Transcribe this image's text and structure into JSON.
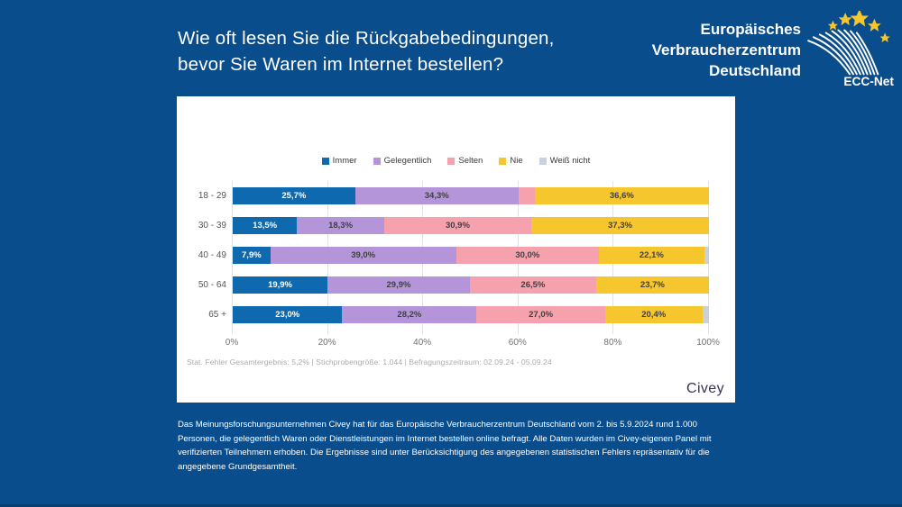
{
  "page": {
    "title_line1": "Wie oft lesen Sie die Rückgabebedingungen,",
    "title_line2": "bevor Sie Waren im Internet bestellen?",
    "brand": {
      "line1": "Europäisches",
      "line2": "Verbraucherzentrum",
      "line3": "Deutschland",
      "logo_label": "ECC-Net"
    },
    "footnote": "Stat. Fehler Gesamtergebnis: 5,2% | Stichprobengröße: 1.044 | Befragungszeitraum: 02.09.24 - 05.09.24",
    "source_label": "Civey",
    "disclaimer": "Das Meinungsforschungsunternehmen Civey hat für das Europäische Verbraucherzentrum Deutschland vom 2. bis 5.9.2024 rund 1.000 Personen, die gelegentlich Waren oder Dienstleistungen im Internet bestellen online befragt. Alle Daten wurden im Civey-eigenen Panel mit verifizierten Teilnehmern erhoben. Die Ergebnisse sind unter Berücksichtigung des angegebenen statistischen Fehlers repräsentativ für die angegebene Grundgesamtheit."
  },
  "colors": {
    "background": "#0a4d8c",
    "immer": "#0e69ae",
    "gelegentlich": "#b495d9",
    "selten": "#f5a2ae",
    "nie": "#f6c62f",
    "weiss_nicht": "#c9d2da",
    "star_yellow": "#f6c62f"
  },
  "chart_data": {
    "type": "bar",
    "orientation": "horizontal",
    "stacked": true,
    "title": "Wie oft lesen Sie die Rückgabebedingungen, bevor Sie Waren im Internet bestellen?",
    "categories": [
      "18 - 29",
      "30 - 39",
      "40 - 49",
      "50 - 64",
      "65 +"
    ],
    "series": [
      {
        "name": "Immer",
        "color_key": "immer",
        "label_color": "#ffffff",
        "values": [
          25.7,
          13.5,
          7.9,
          19.9,
          23.0
        ],
        "labels": [
          "25,7%",
          "13,5%",
          "7,9%",
          "19,9%",
          "23,0%"
        ]
      },
      {
        "name": "Gelegentlich",
        "color_key": "gelegentlich",
        "label_color": "#404040",
        "values": [
          34.3,
          18.3,
          39.0,
          29.9,
          28.2
        ],
        "labels": [
          "34,3%",
          "18,3%",
          "39,0%",
          "29,9%",
          "28,2%"
        ]
      },
      {
        "name": "Selten",
        "color_key": "selten",
        "label_color": "#404040",
        "values": [
          3.4,
          30.9,
          30.0,
          26.5,
          27.0
        ],
        "labels": [
          "",
          "30,9%",
          "30,0%",
          "26,5%",
          "27,0%"
        ]
      },
      {
        "name": "Nie",
        "color_key": "nie",
        "label_color": "#404040",
        "values": [
          36.6,
          37.3,
          22.1,
          23.7,
          20.4
        ],
        "labels": [
          "36,6%",
          "37,3%",
          "22,1%",
          "23,7%",
          "20,4%"
        ]
      },
      {
        "name": "Weiß nicht",
        "color_key": "weiss_nicht",
        "label_color": "#404040",
        "values": [
          0.0,
          0.0,
          1.0,
          0.0,
          1.4
        ],
        "labels": [
          "",
          "",
          "",
          "",
          ""
        ]
      }
    ],
    "x_ticks": [
      "0%",
      "20%",
      "40%",
      "60%",
      "80%",
      "100%"
    ],
    "xlim": [
      0,
      100
    ],
    "legend_position": "top",
    "grid": true
  }
}
